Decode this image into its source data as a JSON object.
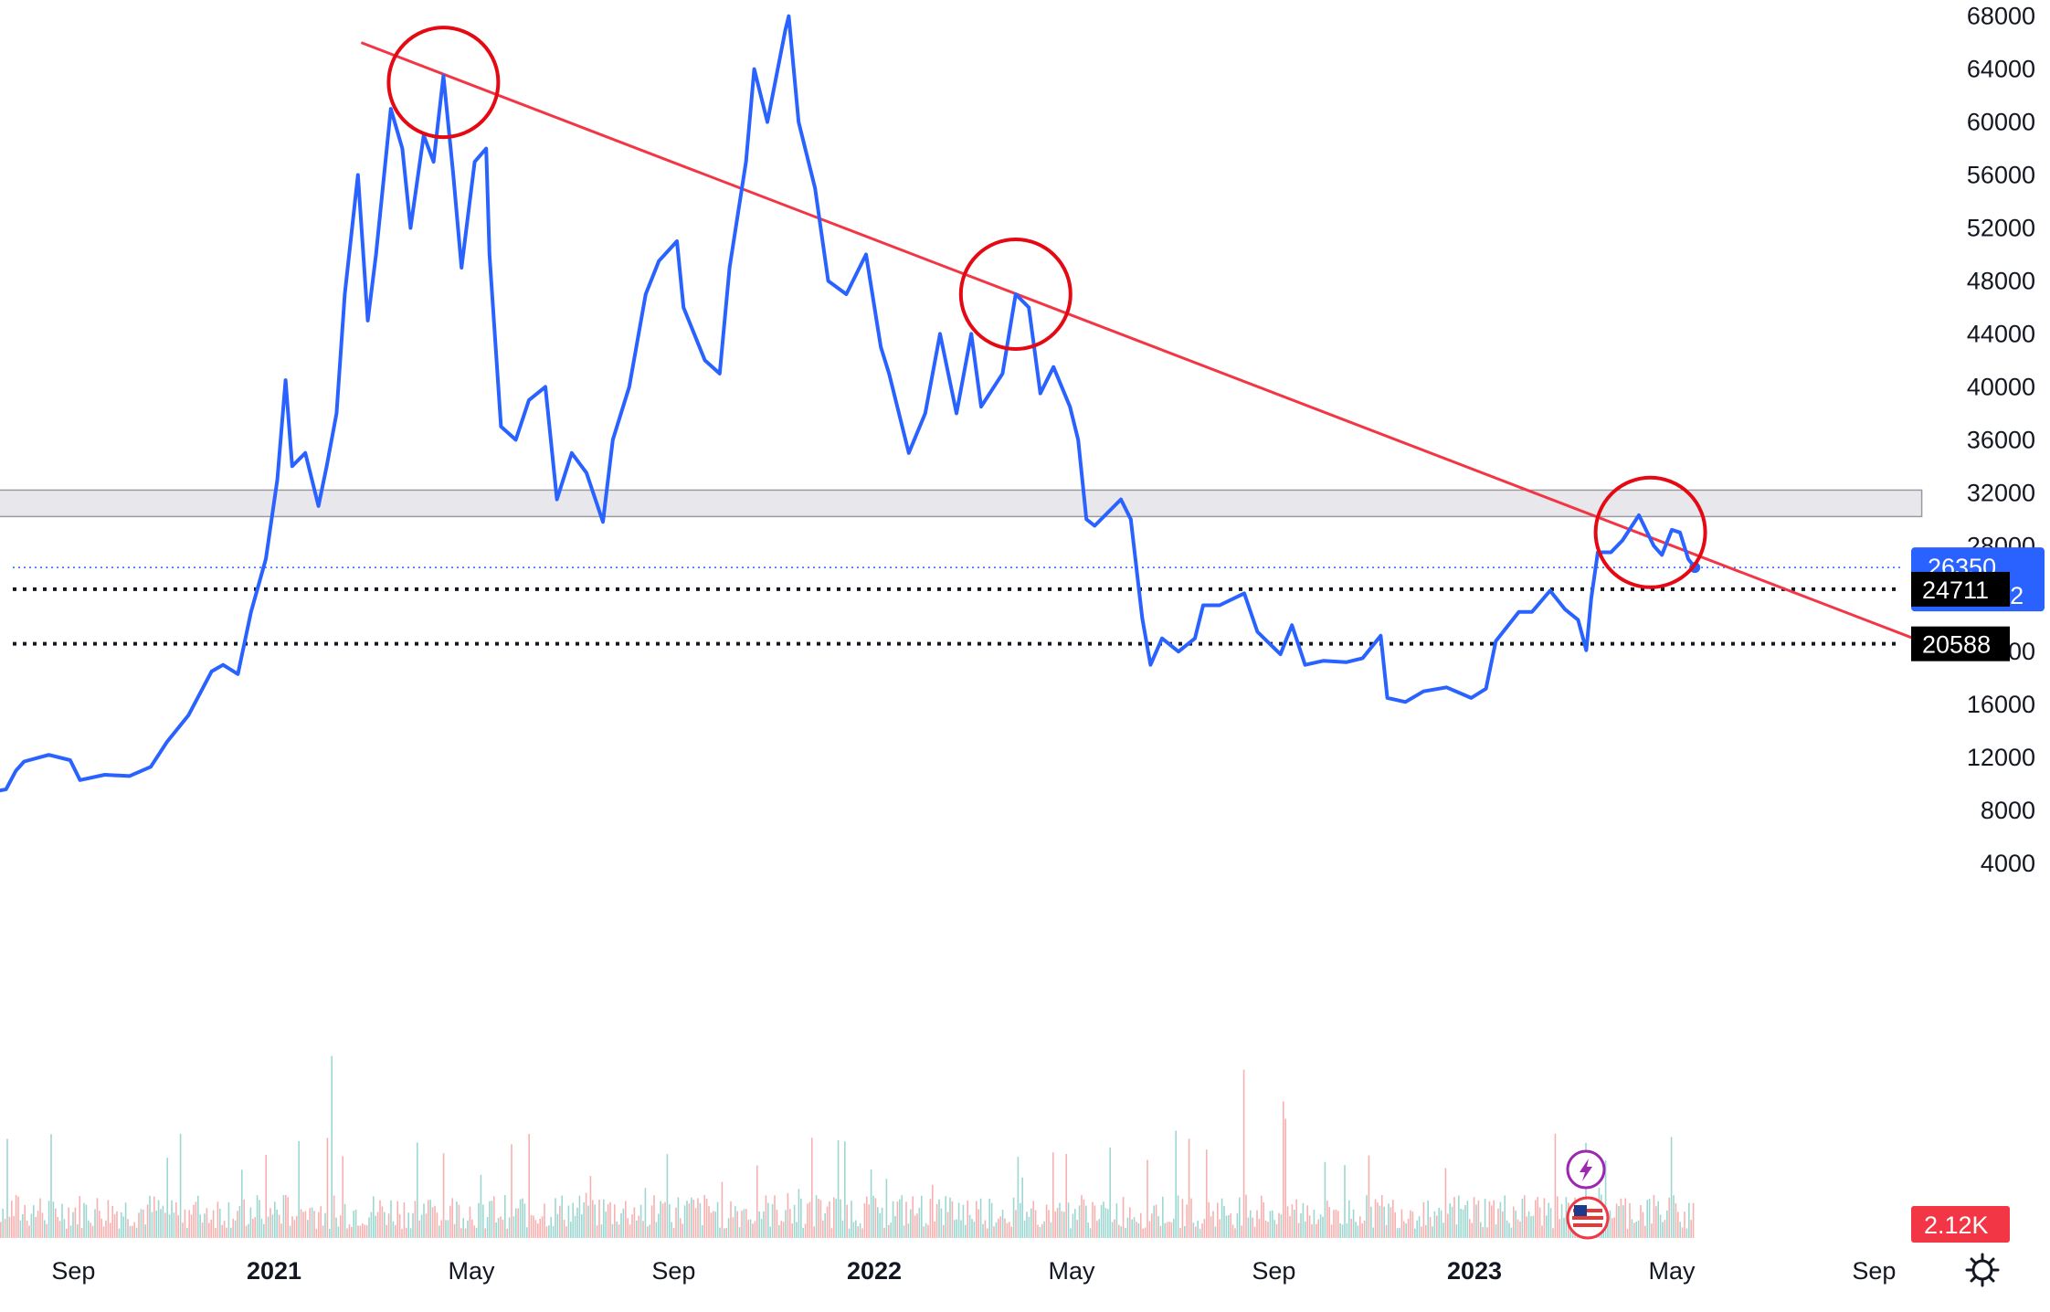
{
  "chart_data": {
    "type": "line",
    "title": "",
    "xlabel": "",
    "ylabel": "",
    "x_range": [
      "2020-07-01",
      "2023-10-31"
    ],
    "y_range": [
      9000,
      70000
    ],
    "y_ticks": [
      "68000",
      "64000",
      "60000",
      "56000",
      "52000",
      "48000",
      "44000",
      "40000",
      "36000",
      "32000",
      "28000",
      "24000",
      "20000",
      "16000",
      "12000",
      "8000",
      "4000"
    ],
    "x_ticks": [
      {
        "label": "Sep",
        "date": "2020-09-01",
        "bold": false
      },
      {
        "label": "2021",
        "date": "2021-01-01",
        "bold": true
      },
      {
        "label": "May",
        "date": "2021-05-01",
        "bold": false
      },
      {
        "label": "Sep",
        "date": "2021-09-01",
        "bold": false
      },
      {
        "label": "2022",
        "date": "2022-01-01",
        "bold": true
      },
      {
        "label": "May",
        "date": "2022-05-01",
        "bold": false
      },
      {
        "label": "Sep",
        "date": "2022-09-01",
        "bold": false
      },
      {
        "label": "2023",
        "date": "2023-01-01",
        "bold": true
      },
      {
        "label": "May",
        "date": "2023-05-01",
        "bold": false
      },
      {
        "label": "Sep",
        "date": "2023-09-01",
        "bold": false
      }
    ],
    "series": [
      {
        "color": "#2962ff",
        "points": [
          [
            "2020-07-01",
            9300
          ],
          [
            "2020-07-10",
            9300
          ],
          [
            "2020-07-22",
            9600
          ],
          [
            "2020-07-28",
            11000
          ],
          [
            "2020-08-02",
            11700
          ],
          [
            "2020-08-17",
            12200
          ],
          [
            "2020-08-30",
            11800
          ],
          [
            "2020-09-05",
            10300
          ],
          [
            "2020-09-20",
            10700
          ],
          [
            "2020-10-05",
            10600
          ],
          [
            "2020-10-18",
            11300
          ],
          [
            "2020-10-28",
            13200
          ],
          [
            "2020-11-10",
            15200
          ],
          [
            "2020-11-24",
            18500
          ],
          [
            "2020-12-01",
            19000
          ],
          [
            "2020-12-10",
            18300
          ],
          [
            "2020-12-18",
            23000
          ],
          [
            "2020-12-27",
            27000
          ],
          [
            "2021-01-03",
            33000
          ],
          [
            "2021-01-08",
            40500
          ],
          [
            "2021-01-12",
            34000
          ],
          [
            "2021-01-20",
            35000
          ],
          [
            "2021-01-28",
            31000
          ],
          [
            "2021-02-02",
            34000
          ],
          [
            "2021-02-08",
            38000
          ],
          [
            "2021-02-13",
            47000
          ],
          [
            "2021-02-21",
            56000
          ],
          [
            "2021-02-27",
            45000
          ],
          [
            "2021-03-04",
            50000
          ],
          [
            "2021-03-13",
            61000
          ],
          [
            "2021-03-20",
            58000
          ],
          [
            "2021-03-25",
            52000
          ],
          [
            "2021-04-02",
            59000
          ],
          [
            "2021-04-08",
            57000
          ],
          [
            "2021-04-14",
            63500
          ],
          [
            "2021-04-20",
            56000
          ],
          [
            "2021-04-25",
            49000
          ],
          [
            "2021-05-03",
            57000
          ],
          [
            "2021-05-10",
            58000
          ],
          [
            "2021-05-12",
            50000
          ],
          [
            "2021-05-19",
            37000
          ],
          [
            "2021-05-28",
            36000
          ],
          [
            "2021-06-05",
            39000
          ],
          [
            "2021-06-15",
            40000
          ],
          [
            "2021-06-22",
            31500
          ],
          [
            "2021-07-01",
            35000
          ],
          [
            "2021-07-10",
            33500
          ],
          [
            "2021-07-20",
            29800
          ],
          [
            "2021-07-26",
            36000
          ],
          [
            "2021-08-05",
            40000
          ],
          [
            "2021-08-15",
            47000
          ],
          [
            "2021-08-23",
            49500
          ],
          [
            "2021-09-03",
            51000
          ],
          [
            "2021-09-07",
            46000
          ],
          [
            "2021-09-20",
            42000
          ],
          [
            "2021-09-29",
            41000
          ],
          [
            "2021-10-05",
            49000
          ],
          [
            "2021-10-15",
            57000
          ],
          [
            "2021-10-20",
            64000
          ],
          [
            "2021-10-28",
            60000
          ],
          [
            "2021-11-08",
            67000
          ],
          [
            "2021-11-10",
            68000
          ],
          [
            "2021-11-16",
            60000
          ],
          [
            "2021-11-26",
            55000
          ],
          [
            "2021-12-04",
            48000
          ],
          [
            "2021-12-15",
            47000
          ],
          [
            "2021-12-27",
            50000
          ],
          [
            "2022-01-05",
            43000
          ],
          [
            "2022-01-10",
            41000
          ],
          [
            "2022-01-22",
            35000
          ],
          [
            "2022-02-01",
            38000
          ],
          [
            "2022-02-10",
            44000
          ],
          [
            "2022-02-20",
            38000
          ],
          [
            "2022-03-01",
            44000
          ],
          [
            "2022-03-07",
            38500
          ],
          [
            "2022-03-20",
            41000
          ],
          [
            "2022-03-28",
            47000
          ],
          [
            "2022-04-05",
            46000
          ],
          [
            "2022-04-12",
            39500
          ],
          [
            "2022-04-20",
            41500
          ],
          [
            "2022-04-30",
            38500
          ],
          [
            "2022-05-05",
            36000
          ],
          [
            "2022-05-10",
            30000
          ],
          [
            "2022-05-15",
            29500
          ],
          [
            "2022-05-31",
            31500
          ],
          [
            "2022-06-06",
            30000
          ],
          [
            "2022-06-13",
            22500
          ],
          [
            "2022-06-18",
            19000
          ],
          [
            "2022-06-25",
            21000
          ],
          [
            "2022-07-05",
            20000
          ],
          [
            "2022-07-15",
            21000
          ],
          [
            "2022-07-20",
            23500
          ],
          [
            "2022-07-30",
            23500
          ],
          [
            "2022-08-14",
            24400
          ],
          [
            "2022-08-22",
            21500
          ],
          [
            "2022-09-05",
            19800
          ],
          [
            "2022-09-12",
            22000
          ],
          [
            "2022-09-20",
            19000
          ],
          [
            "2022-10-01",
            19300
          ],
          [
            "2022-10-15",
            19200
          ],
          [
            "2022-10-25",
            19500
          ],
          [
            "2022-11-05",
            21200
          ],
          [
            "2022-11-09",
            16500
          ],
          [
            "2022-11-20",
            16200
          ],
          [
            "2022-12-01",
            17000
          ],
          [
            "2022-12-15",
            17300
          ],
          [
            "2022-12-30",
            16500
          ],
          [
            "2023-01-08",
            17200
          ],
          [
            "2023-01-14",
            20800
          ],
          [
            "2023-01-28",
            23000
          ],
          [
            "2023-02-05",
            23000
          ],
          [
            "2023-02-16",
            24600
          ],
          [
            "2023-02-25",
            23200
          ],
          [
            "2023-03-05",
            22400
          ],
          [
            "2023-03-10",
            20100
          ],
          [
            "2023-03-13",
            24000
          ],
          [
            "2023-03-17",
            27500
          ],
          [
            "2023-03-25",
            27500
          ],
          [
            "2023-04-01",
            28400
          ],
          [
            "2023-04-11",
            30300
          ],
          [
            "2023-04-20",
            28000
          ],
          [
            "2023-04-25",
            27300
          ],
          [
            "2023-05-01",
            29200
          ],
          [
            "2023-05-06",
            29000
          ],
          [
            "2023-05-11",
            27000
          ],
          [
            "2023-05-15",
            26350
          ]
        ]
      }
    ],
    "volume": {
      "colors": [
        "#26a69a",
        "#ef5350"
      ],
      "last_value_label": "2.12K"
    },
    "annotations": {
      "trendline": {
        "color": "#f23645",
        "from": [
          "2021-02-23",
          66000
        ],
        "to": [
          "2023-09-25",
          21000
        ]
      },
      "resistance_zone": {
        "from_date": "2020-07-10",
        "to_date": "2023-09-30",
        "low": 30200,
        "high": 32200
      },
      "support_lines": [
        {
          "value": 24711,
          "label": "24711"
        },
        {
          "value": 20588,
          "label": "20588"
        }
      ],
      "circles": [
        {
          "date": "2021-04-14",
          "value": 63000
        },
        {
          "date": "2022-03-28",
          "value": 47000
        },
        {
          "date": "2023-04-18",
          "value": 29000
        }
      ]
    },
    "last_price": {
      "value": 26350,
      "label": "26350",
      "countdown": "14:27:32",
      "color": "#2962ff"
    },
    "grid": false,
    "legend": "none"
  },
  "icons": {
    "lightning": "lightning-icon",
    "flag": "us-flag-icon",
    "settings": "gear-icon"
  }
}
